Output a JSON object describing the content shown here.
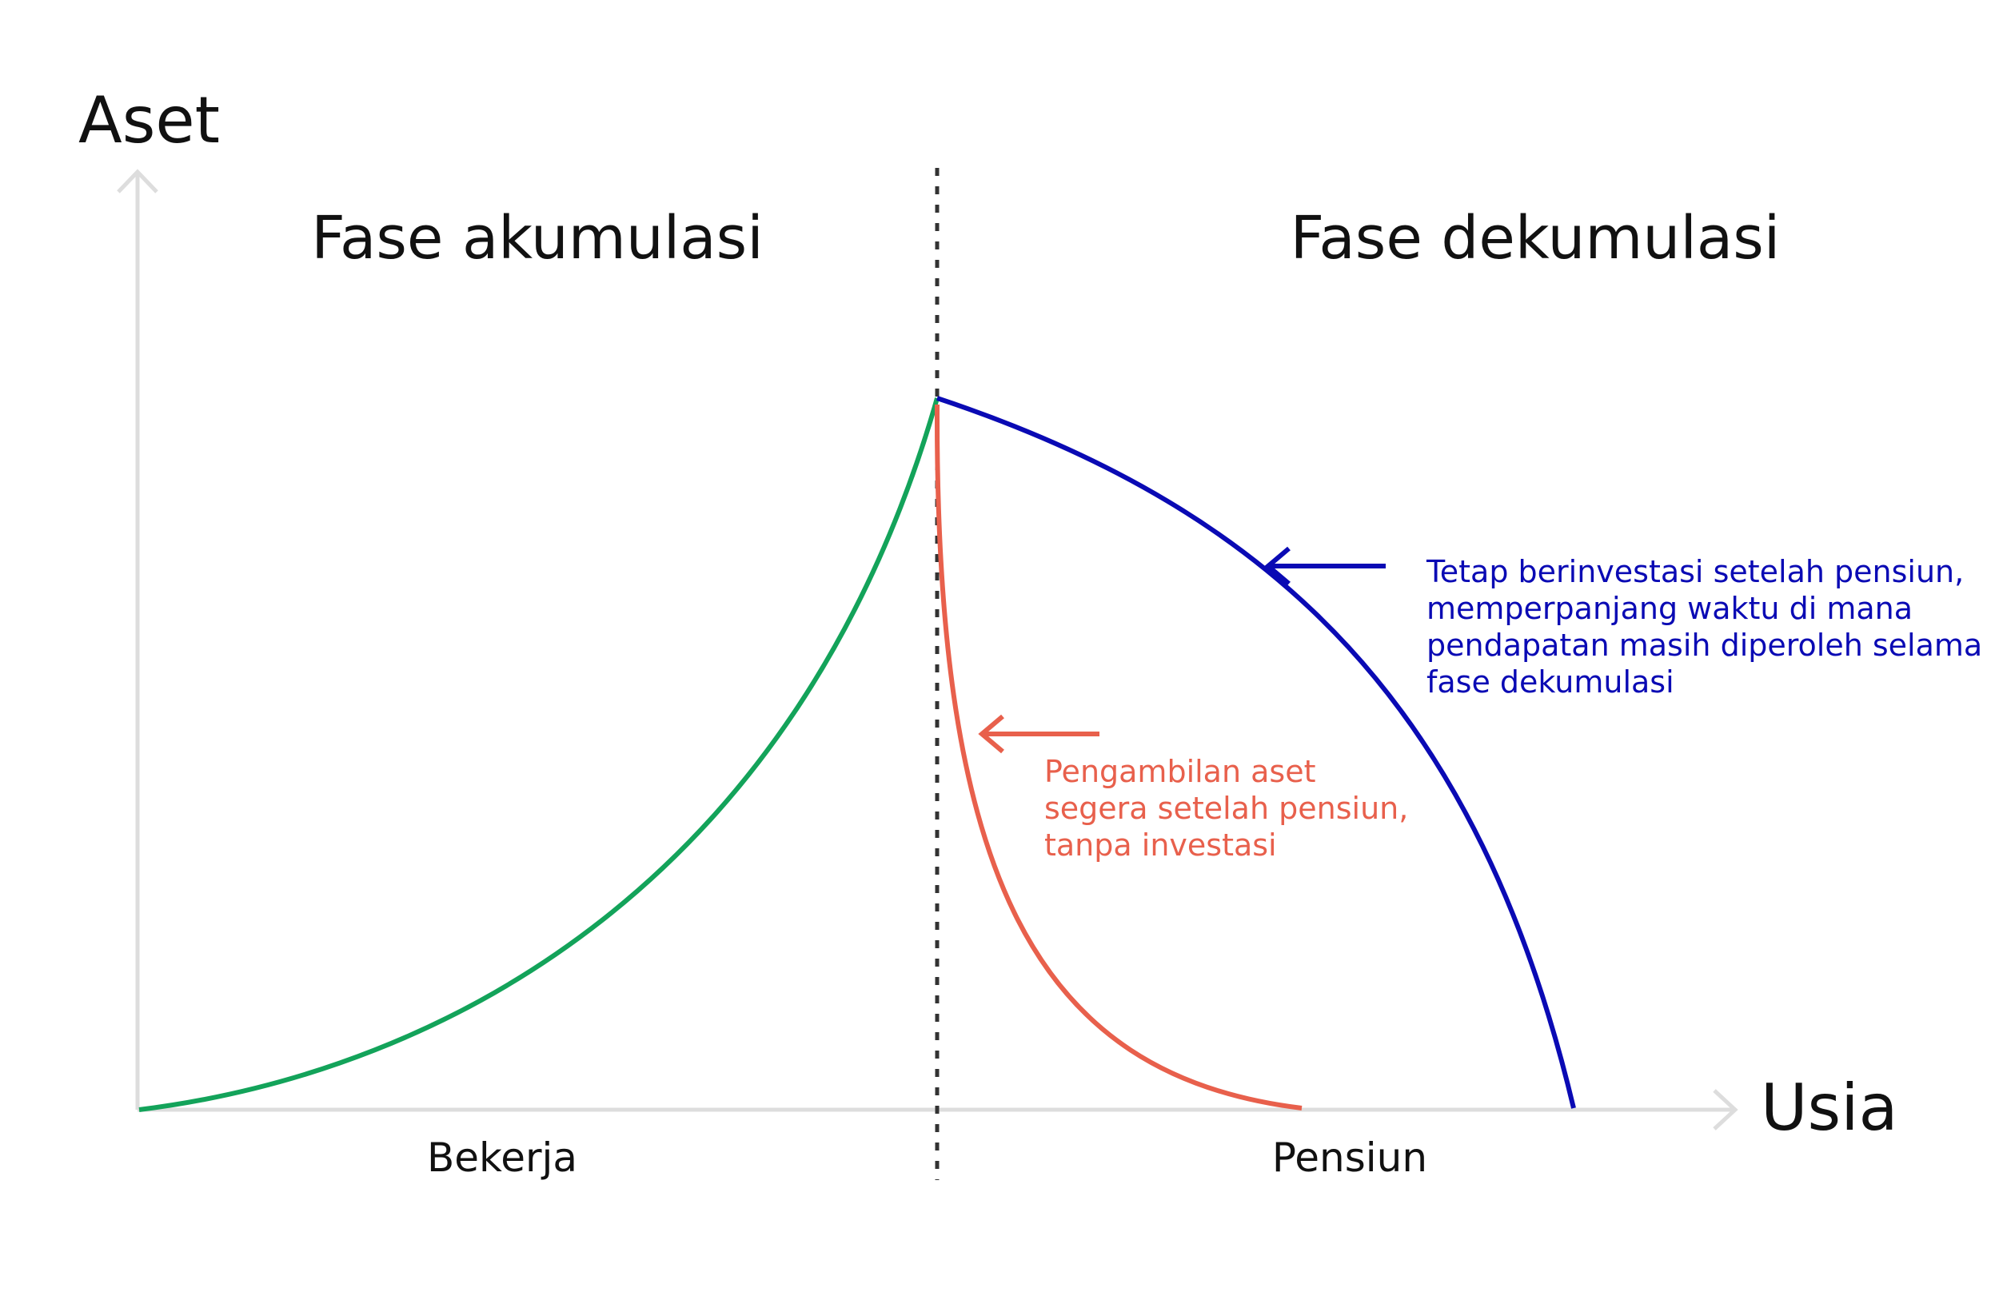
{
  "axes": {
    "y_label": "Aset",
    "x_label": "Usia"
  },
  "phases": {
    "left_title": "Fase akumulasi",
    "right_title": "Fase dekumulasi",
    "left_bottom": "Bekerja",
    "right_bottom": "Pensiun"
  },
  "annotations": {
    "blue": {
      "lines": [
        "Tetap berinvestasi setelah pensiun,",
        "memperpanjang waktu di mana",
        "pendapatan masih diperoleh selama",
        "fase dekumulasi"
      ],
      "color": "#0a0ab4"
    },
    "red": {
      "lines": [
        "Pengambilan aset",
        "segera setelah pensiun,",
        "tanpa investasi"
      ],
      "color": "#e8604c"
    }
  },
  "colors": {
    "accumulation_curve": "#13a35a",
    "invested_curve": "#0a0ab4",
    "withdrawal_curve": "#e8604c",
    "axis": "#dddddd",
    "divider": "#333333"
  }
}
